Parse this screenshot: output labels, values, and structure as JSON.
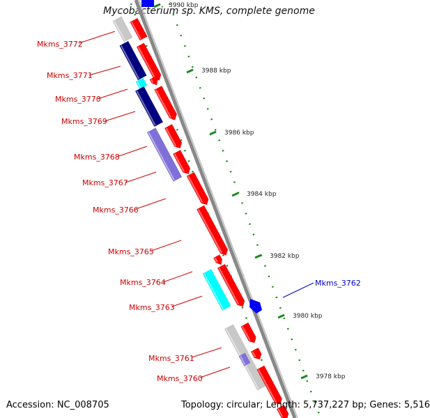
{
  "title": "Mycobacterium sp. KMS, complete genome",
  "footer": {
    "accession": "Accession: NC_008705",
    "summary": "Topology: circular; Length: 5,737,227 bp; Genes: 5,516"
  },
  "colors": {
    "forward_gene": "#ff0000",
    "reverse_gene": "#00007f",
    "reverse_gene_light": "#7f6fd8",
    "rna_gene": "#00ffff",
    "pseudo_gene": "#c8c8c8",
    "other_forward": "#0000ff",
    "backbone": "#888888",
    "tick": "#1a8a1a",
    "label_red": "#cc0000",
    "label_blue": "#0000cc"
  },
  "ticks": [
    {
      "label": "3990 kbp"
    },
    {
      "label": "3988 kbp"
    },
    {
      "label": "3986 kbp"
    },
    {
      "label": "3984 kbp"
    },
    {
      "label": "3982 kbp"
    },
    {
      "label": "3980 kbp"
    },
    {
      "label": "3978 kbp"
    }
  ],
  "gene_labels": [
    {
      "name": "Mkms_3772",
      "color": "red"
    },
    {
      "name": "Mkms_3771",
      "color": "red"
    },
    {
      "name": "Mkms_3770",
      "color": "red"
    },
    {
      "name": "Mkms_3769",
      "color": "red"
    },
    {
      "name": "Mkms_3768",
      "color": "red"
    },
    {
      "name": "Mkms_3767",
      "color": "red"
    },
    {
      "name": "Mkms_3766",
      "color": "red"
    },
    {
      "name": "Mkms_3765",
      "color": "red"
    },
    {
      "name": "Mkms_3764",
      "color": "red"
    },
    {
      "name": "Mkms_3763",
      "color": "red"
    },
    {
      "name": "Mkms_3762",
      "color": "blue"
    },
    {
      "name": "Mkms_3761",
      "color": "red"
    },
    {
      "name": "Mkms_3760",
      "color": "red"
    }
  ]
}
